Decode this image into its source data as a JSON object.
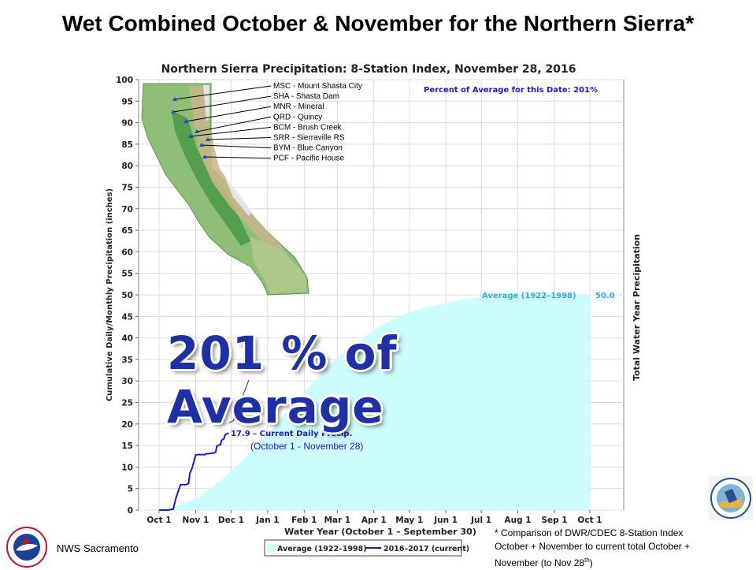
{
  "slide": {
    "title": "Wet Combined October & November for the Northern Sierra*",
    "callout": "201 % of Average",
    "footnote_line1": "* Comparison of DWR/CDEC 8-Station Index",
    "footnote_line2": "October + November to current total October +",
    "footnote_line3a": "November  (to Nov 28",
    "footnote_sup": "th",
    "footnote_line3b": ")",
    "office": "NWS Sacramento"
  },
  "chart_data": {
    "type": "area",
    "title": "Northern Sierra Precipitation: 8-Station Index, November 28, 2016",
    "xlabel": "Water Year (October 1 – September 30)",
    "ylabel": "Cumulative Daily/Monthly Precipitation (inches)",
    "y2label": "Total Water Year Precipitation",
    "ylim": [
      0,
      100
    ],
    "yticks": [
      "0",
      "5",
      "10",
      "15",
      "20",
      "25",
      "30",
      "35",
      "40",
      "45",
      "50",
      "55",
      "60",
      "65",
      "70",
      "75",
      "80",
      "85",
      "90",
      "95",
      "100"
    ],
    "x_tick_labels": [
      "Oct 1",
      "Nov 1",
      "Dec 1",
      "Jan 1",
      "Feb 1",
      "Mar 1",
      "Apr 1",
      "May 1",
      "Jun 1",
      "Jul 1",
      "Aug 1",
      "Sep 1",
      "Oct 1"
    ],
    "x_tick_days": [
      0,
      31,
      61,
      92,
      123,
      151,
      182,
      212,
      243,
      273,
      304,
      335,
      365
    ],
    "percent_text": "Percent of Average for this Date: 201%",
    "average_label": "Average (1922–1998)",
    "average_total": "50.0",
    "current_label": "17.9 –  Current Daily Precip.",
    "current_sublabel": "(October 1 - November 28)",
    "legend": [
      "Average (1922–1998)",
      "2016–2017 (current)"
    ],
    "legend_position": "bottom",
    "grid": true,
    "colors": {
      "average": "#ccfdfd",
      "current": "#1a1ad0",
      "average_text": "#2ab0d8",
      "percent_text": "#1a1ad0",
      "callout": "#1f2fa8"
    },
    "series": [
      {
        "name": "Average (1922–1998)",
        "x": [
          0,
          15,
          31,
          45,
          61,
          75,
          92,
          105,
          123,
          137,
          151,
          165,
          182,
          197,
          212,
          227,
          243,
          258,
          273,
          288,
          304,
          320,
          335,
          350,
          365
        ],
        "y": [
          0,
          0.9,
          2.6,
          5.3,
          8.9,
          12.8,
          17.5,
          21.9,
          27.4,
          31.6,
          35.3,
          38.5,
          41.8,
          44.3,
          45.9,
          47.1,
          48.1,
          48.9,
          49.4,
          49.7,
          49.9,
          50.0,
          50.0,
          50.0,
          50.0
        ]
      },
      {
        "name": "2016–2017 (current)",
        "x": [
          0,
          8,
          9,
          12,
          14,
          15,
          18,
          19,
          20,
          22,
          24,
          25,
          26,
          28,
          31,
          33,
          35,
          37,
          39,
          40,
          42,
          44,
          45,
          47,
          48,
          49,
          51,
          52,
          53,
          55,
          56,
          58,
          59
        ],
        "y": [
          0,
          0,
          0.1,
          0.2,
          2.5,
          3.4,
          5.8,
          5.9,
          5.9,
          5.9,
          6.0,
          6.2,
          8.5,
          9.8,
          12.8,
          12.9,
          12.9,
          12.9,
          12.9,
          13.1,
          13.1,
          13.2,
          13.2,
          13.3,
          13.5,
          14.9,
          15.1,
          15.2,
          16.2,
          16.6,
          17.5,
          17.8,
          17.9
        ]
      }
    ],
    "stations": [
      {
        "label": "MSC - Mount Shasta City"
      },
      {
        "label": "SHA - Shasta Dam"
      },
      {
        "label": "MNR - Mineral"
      },
      {
        "label": "QRD - Quincy"
      },
      {
        "label": "BCM - Brush Creek"
      },
      {
        "label": "SRR - Sierraville RS"
      },
      {
        "label": "BYM - Blue Canyon"
      },
      {
        "label": "PCF - Pacific House"
      }
    ]
  }
}
